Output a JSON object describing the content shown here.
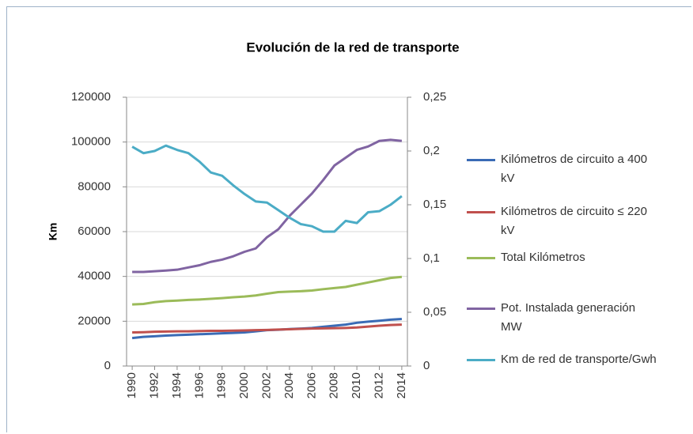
{
  "chart_data": {
    "type": "line",
    "title": "Evolución de la red de transporte",
    "ylabel": "Km",
    "x": [
      1990,
      1991,
      1992,
      1993,
      1994,
      1995,
      1996,
      1997,
      1998,
      1999,
      2000,
      2001,
      2002,
      2003,
      2004,
      2005,
      2006,
      2007,
      2008,
      2009,
      2010,
      2011,
      2012,
      2013,
      2014
    ],
    "xlim": [
      1989.5,
      2014.5
    ],
    "xticks": [
      1990,
      1992,
      1994,
      1996,
      1998,
      2000,
      2002,
      2004,
      2006,
      2008,
      2010,
      2012,
      2014
    ],
    "ylim": [
      0,
      120000
    ],
    "yticks": [
      0,
      20000,
      40000,
      60000,
      80000,
      100000,
      120000
    ],
    "y2lim": [
      0,
      0.25
    ],
    "y2ticks": [
      0,
      {
        "value": 0.05,
        "label": "0,05"
      },
      {
        "value": 0.1,
        "label": "0,1"
      },
      {
        "value": 0.15,
        "label": "0,15"
      },
      {
        "value": 0.2,
        "label": "0,2"
      },
      {
        "value": 0.25,
        "label": "0,25"
      }
    ],
    "grid": true,
    "legend": "right",
    "series": [
      {
        "name": "Kilómetros de circuito a 400 kV",
        "color": "#3a6bb5",
        "values": [
          12500,
          13000,
          13300,
          13600,
          13800,
          14000,
          14200,
          14400,
          14600,
          14800,
          15000,
          15500,
          16000,
          16200,
          16500,
          16700,
          17000,
          17500,
          18000,
          18500,
          19300,
          19800,
          20200,
          20700,
          21000
        ]
      },
      {
        "name": "Kilómetros de circuito  ≤ 220 kV",
        "color": "#c0504d",
        "values": [
          15000,
          15100,
          15300,
          15400,
          15500,
          15500,
          15600,
          15700,
          15700,
          15800,
          15900,
          16000,
          16100,
          16300,
          16400,
          16600,
          16700,
          16800,
          16900,
          17000,
          17200,
          17600,
          18000,
          18300,
          18500
        ]
      },
      {
        "name": "Total Kilómetros",
        "color": "#9bbb59",
        "values": [
          27500,
          27700,
          28500,
          29000,
          29200,
          29500,
          29700,
          30000,
          30300,
          30700,
          31000,
          31500,
          32300,
          33000,
          33200,
          33400,
          33700,
          34300,
          34800,
          35300,
          36300,
          37300,
          38300,
          39300,
          39800
        ]
      },
      {
        "name": "Pot. Instalada generación MW",
        "color": "#8064a2",
        "values": [
          42000,
          42000,
          42300,
          42600,
          43000,
          44000,
          45000,
          46500,
          47500,
          49000,
          51000,
          52500,
          57500,
          61000,
          67000,
          72000,
          77000,
          83000,
          89500,
          93000,
          96500,
          98000,
          100500,
          101000,
          100500
        ]
      },
      {
        "name": "Km de red de transporte/Gwh",
        "color": "#4bacc6",
        "axis": "y2",
        "values": [
          0.204,
          0.198,
          0.2,
          0.205,
          0.201,
          0.198,
          0.19,
          0.18,
          0.177,
          0.168,
          0.16,
          0.153,
          0.152,
          0.145,
          0.138,
          0.132,
          0.13,
          0.125,
          0.125,
          0.135,
          0.133,
          0.143,
          0.144,
          0.15,
          0.158
        ]
      }
    ]
  }
}
